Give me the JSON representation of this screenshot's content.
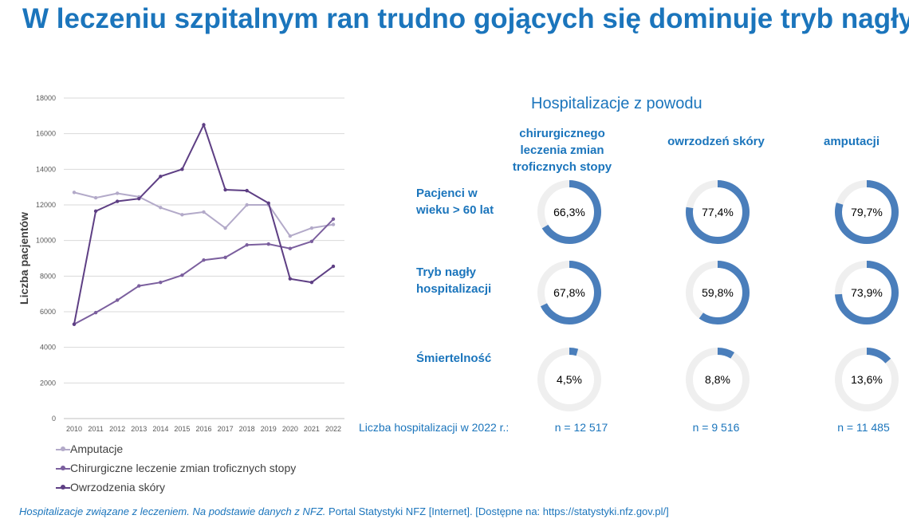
{
  "title": "W leczeniu szpitalnym ran trudno gojących się dominuje tryb nagły",
  "chart_data": {
    "type": "line",
    "ylabel": "Liczba pacjentów",
    "ylim": [
      0,
      18000
    ],
    "yticks": [
      0,
      2000,
      4000,
      6000,
      8000,
      10000,
      12000,
      14000,
      16000,
      18000
    ],
    "x": [
      "2010",
      "2011",
      "2012",
      "2013",
      "2014",
      "2015",
      "2016",
      "2017",
      "2018",
      "2019",
      "2020",
      "2021",
      "2022"
    ],
    "grid": true,
    "legend_position": "bottom",
    "series": [
      {
        "name": "Amputacje",
        "color": "#b3aac9",
        "values": [
          12700,
          12400,
          12650,
          12450,
          11850,
          11450,
          11600,
          10700,
          12000,
          12000,
          10250,
          10700,
          10900
        ]
      },
      {
        "name": "Chirurgiczne leczenie zmian troficznych stopy",
        "color": "#7b5f9e",
        "values": [
          5300,
          5950,
          6650,
          7450,
          7650,
          8050,
          8900,
          9050,
          9750,
          9800,
          9550,
          9950,
          11200
        ]
      },
      {
        "name": "Owrzodzenia skóry",
        "color": "#5e3f84",
        "values": [
          5300,
          11650,
          12200,
          12350,
          13600,
          14000,
          16500,
          12850,
          12800,
          12100,
          7850,
          7650,
          8550
        ]
      }
    ]
  },
  "panel": {
    "title": "Hospitalizacje z powodu",
    "columns": [
      {
        "lines": [
          "chirurgicznego",
          "leczenia zmian",
          "troficznych stopy"
        ]
      },
      {
        "lines": [
          "owrzodzeń skóry"
        ]
      },
      {
        "lines": [
          "amputacji"
        ]
      }
    ],
    "rows": [
      {
        "lines": [
          "Pacjenci w",
          "wieku > 60 lat"
        ]
      },
      {
        "lines": [
          "Tryb nagły",
          "hospitalizacji"
        ]
      },
      {
        "lines": [
          "Śmiertelność"
        ]
      }
    ],
    "donuts": [
      [
        {
          "label": "66,3%",
          "value": 0.663
        },
        {
          "label": "77,4%",
          "value": 0.774
        },
        {
          "label": "79,7%",
          "value": 0.797
        }
      ],
      [
        {
          "label": "67,8%",
          "value": 0.678
        },
        {
          "label": "59,8%",
          "value": 0.598
        },
        {
          "label": "73,9%",
          "value": 0.739
        }
      ],
      [
        {
          "label": "4,5%",
          "value": 0.045
        },
        {
          "label": "8,8%",
          "value": 0.088
        },
        {
          "label": "13,6%",
          "value": 0.136
        }
      ]
    ],
    "donut_fill_color": "#4a7ebb",
    "donut_track_color": "#efefef",
    "counts_label": "Liczba hospitalizacji w 2022 r.:",
    "counts": [
      "n = 12 517",
      "n = 9 516",
      "n = 11 485"
    ]
  },
  "source": {
    "italic": "Hospitalizacje związane z leczeniem. Na podstawie danych z NFZ.",
    "normal": " Portal Statystyki NFZ [Internet]. [Dostępne na: https://statystyki.nfz.gov.pl/]"
  }
}
